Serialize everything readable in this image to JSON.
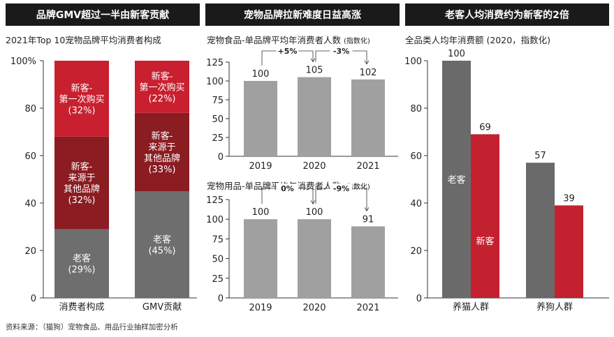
{
  "colors": {
    "new_first": "#c8202f",
    "new_switch": "#8a1c22",
    "old": "#6e6e6e",
    "gray_bar": "#a0a0a0",
    "red": "#c32030",
    "dark": "#6a6a6a"
  },
  "panels": {
    "p1": {
      "header": "品牌GMV超过一半由新客贡献",
      "subtitle": "2021年Top 10宠物品牌平均消费者构成"
    },
    "p2": {
      "header": "宠物品牌拉新难度日益高涨"
    },
    "p3": {
      "header": "老客人均消费约为新客的2倍",
      "subtitle": "全品类人均年消费额 (2020，指数化)"
    }
  },
  "source": "资料来源：（猫狗）宠物食品、用品行业抽样加密分析",
  "chart_data": [
    {
      "type": "bar",
      "stacked": true,
      "categories": [
        "消费者构成",
        "GMV贡献"
      ],
      "yticks": [
        "100%",
        "80",
        "60",
        "40",
        "20",
        "0"
      ],
      "ylim": [
        0,
        100
      ],
      "series": [
        {
          "name": "老客",
          "values": [
            29,
            45
          ],
          "labels": [
            [
              "老客",
              "(29%)"
            ],
            [
              "老客",
              "(45%)"
            ]
          ]
        },
        {
          "name": "新客-来源于其他品牌",
          "values": [
            39,
            33
          ],
          "labels": [
            [
              "新客-",
              "来源于",
              "其他品牌",
              "(32%)"
            ],
            [
              "新客-",
              "来源于",
              "其他品牌",
              "(33%)"
            ]
          ]
        },
        {
          "name": "新客-第一次购买",
          "values": [
            32,
            22
          ],
          "labels": [
            [
              "新客-",
              "第一次购买",
              "(32%)"
            ],
            [
              "新客-",
              "第一次购买",
              "(22%)"
            ]
          ]
        }
      ]
    },
    {
      "type": "bar",
      "title": "宠物食品-单品牌平均年消费者人数",
      "title_note": "(指数化)",
      "categories": [
        "2019",
        "2020",
        "2021"
      ],
      "values": [
        100,
        105,
        102
      ],
      "yticks": [
        "125",
        "100",
        "75",
        "50",
        "25",
        "0"
      ],
      "ylim": [
        0,
        125
      ],
      "changes": [
        "+5%",
        "-3%"
      ]
    },
    {
      "type": "bar",
      "title": "宠物用品-单品牌平均年消费者人数",
      "title_note": "(指数化)",
      "categories": [
        "2019",
        "2020",
        "2021"
      ],
      "values": [
        100,
        100,
        91
      ],
      "yticks": [
        "125",
        "100",
        "75",
        "50",
        "25",
        "0"
      ],
      "ylim": [
        0,
        125
      ],
      "changes": [
        "0%",
        "-9%"
      ]
    },
    {
      "type": "bar",
      "categories": [
        "养猫人群",
        "养狗人群"
      ],
      "series": [
        {
          "name": "老客",
          "values": [
            100,
            57
          ]
        },
        {
          "name": "新客",
          "values": [
            69,
            39
          ]
        }
      ],
      "yticks": [
        "100",
        "80",
        "60",
        "40",
        "20",
        "0"
      ],
      "ylim": [
        0,
        100
      ]
    }
  ]
}
